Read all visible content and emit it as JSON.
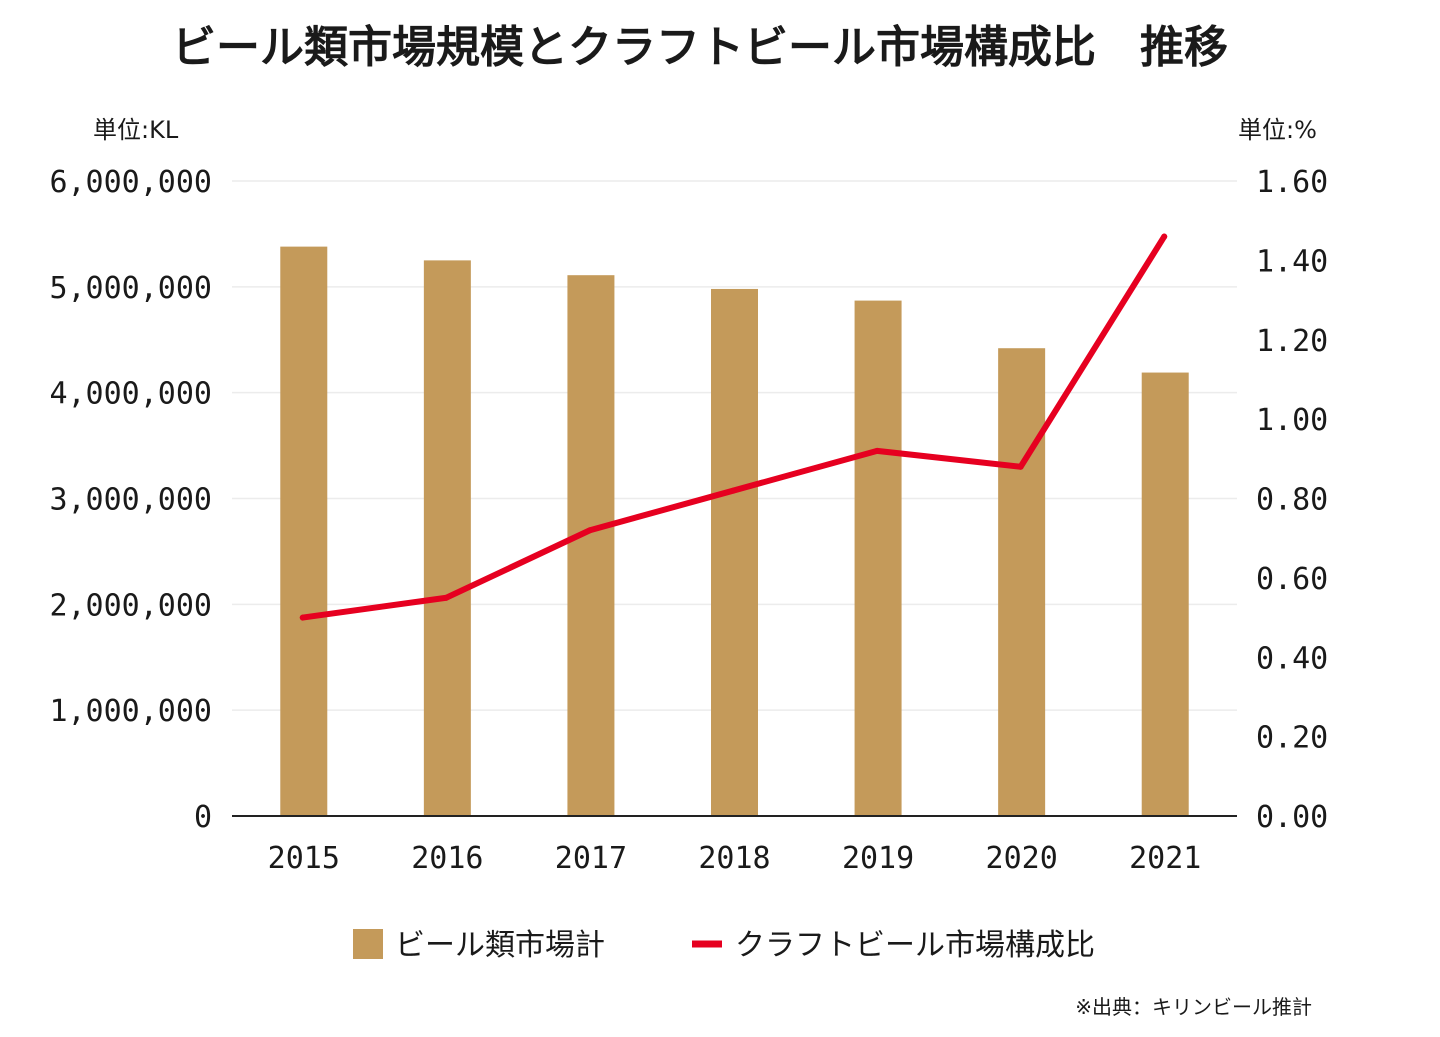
{
  "chart_data": {
    "type": "bar",
    "title": "ビール類市場規模とクラフトビール市場構成比　推移",
    "left_unit": "単位:KL",
    "right_unit": "単位:%",
    "categories": [
      "2015",
      "2016",
      "2017",
      "2018",
      "2019",
      "2020",
      "2021"
    ],
    "left_ylim": [
      0,
      6000000
    ],
    "right_ylim": [
      0,
      1.6
    ],
    "left_ticks": [
      "0",
      "1,000,000",
      "2,000,000",
      "3,000,000",
      "4,000,000",
      "5,000,000",
      "6,000,000"
    ],
    "right_ticks": [
      "0.00",
      "0.20",
      "0.40",
      "0.60",
      "0.80",
      "1.00",
      "1.20",
      "1.40",
      "1.60"
    ],
    "series": [
      {
        "name": "ビール類市場計",
        "type": "bar",
        "axis": "left",
        "color": "#c49a5a",
        "values": [
          5380000,
          5250000,
          5110000,
          4980000,
          4870000,
          4420000,
          4190000
        ]
      },
      {
        "name": "クラフトビール市場構成比",
        "type": "line",
        "axis": "right",
        "color": "#e60020",
        "values": [
          0.5,
          0.55,
          0.72,
          0.82,
          0.92,
          0.88,
          1.46
        ]
      }
    ],
    "grid": true,
    "legend": "bottom-center",
    "source": "※出典：キリンビール推計"
  }
}
